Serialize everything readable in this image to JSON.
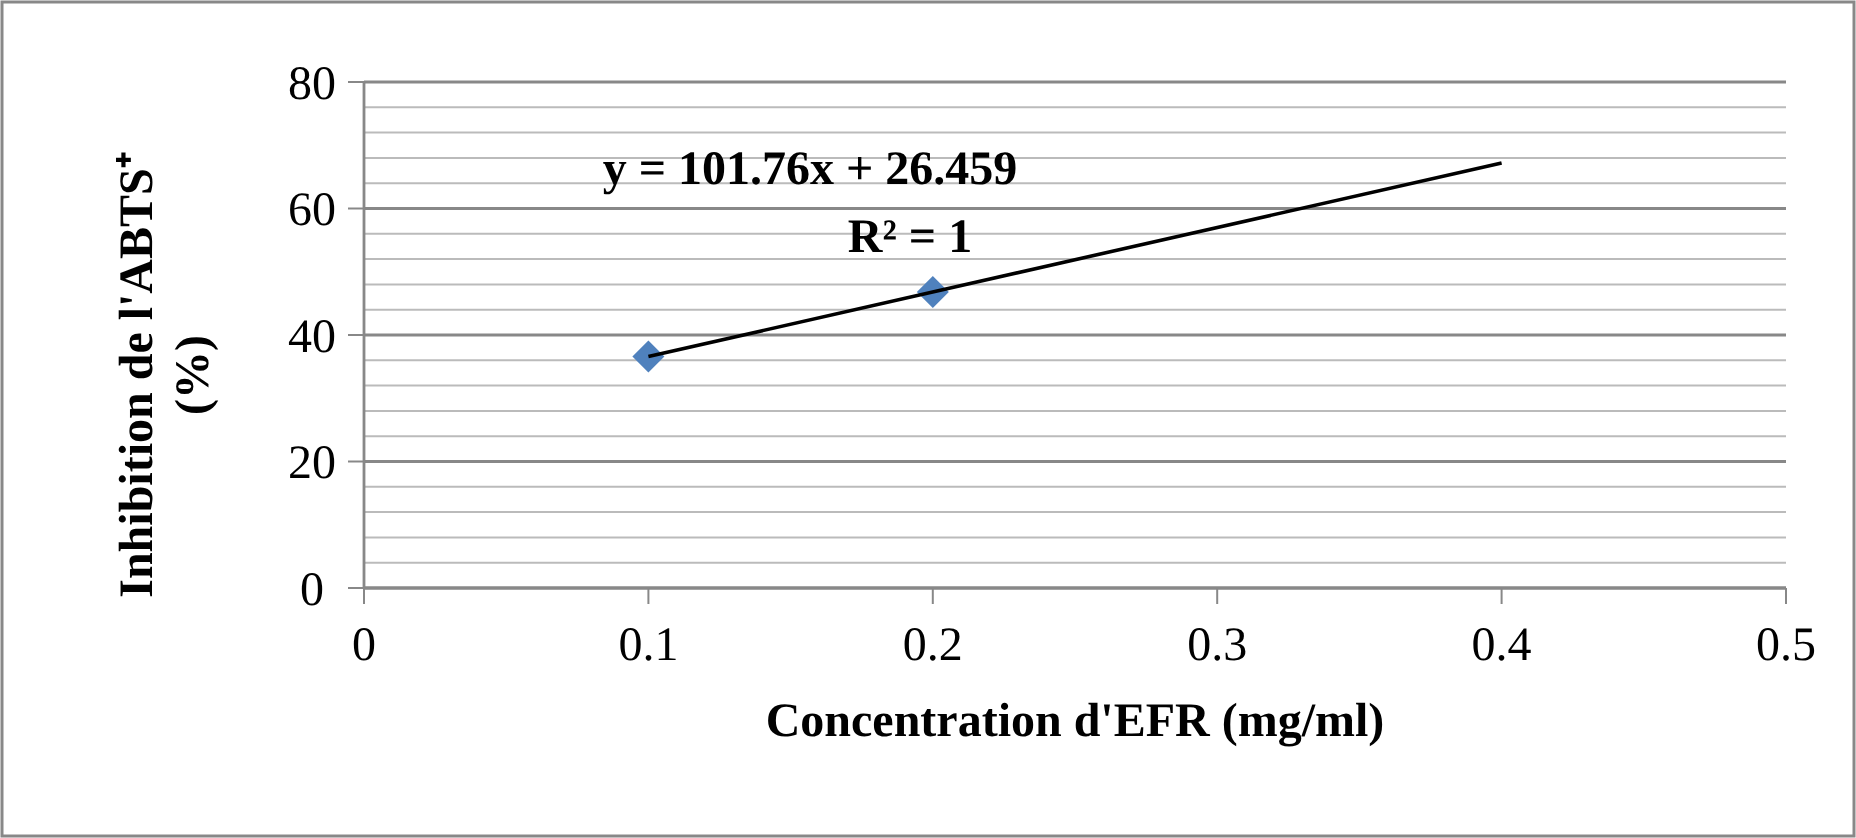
{
  "chart_data": {
    "type": "scatter",
    "xlabel": "Concentration d'EFR (mg/ml)",
    "ylabel": "Inhibition de l'ABTS⁺ (%)",
    "xlim": [
      0,
      0.5
    ],
    "xticks": [
      0,
      0.1,
      0.2,
      0.3,
      0.4,
      0.5
    ],
    "ylim": [
      0,
      80
    ],
    "yticks": [
      0,
      {
        "value": 4,
        "label": null
      },
      {
        "value": 8,
        "label": null
      },
      {
        "value": 12,
        "label": null
      },
      {
        "value": 16,
        "label": null
      },
      20,
      {
        "value": 24,
        "label": null
      },
      {
        "value": 28,
        "label": null
      },
      {
        "value": 32,
        "label": null
      },
      {
        "value": 36,
        "label": null
      },
      40,
      {
        "value": 44,
        "label": null
      },
      {
        "value": 48,
        "label": null
      },
      {
        "value": 52,
        "label": null
      },
      {
        "value": 56,
        "label": null
      },
      60,
      {
        "value": 64,
        "label": null
      },
      {
        "value": 68,
        "label": null
      },
      {
        "value": 72,
        "label": null
      },
      {
        "value": 76,
        "label": null
      },
      80
    ],
    "grid": "y",
    "series": [
      {
        "color": "#4f81bd",
        "marker": "diamond",
        "x": [
          0.1,
          0.2
        ],
        "values": [
          36.6,
          46.8
        ]
      },
      {
        "type": "line",
        "color": "#000000",
        "marker": "none",
        "line_style": "solid",
        "x": [
          0.1,
          0.4
        ],
        "values": [
          36.6,
          67.2
        ]
      }
    ],
    "annotations": [
      "y = 101.76x + 26.459",
      "R² = 1"
    ]
  }
}
